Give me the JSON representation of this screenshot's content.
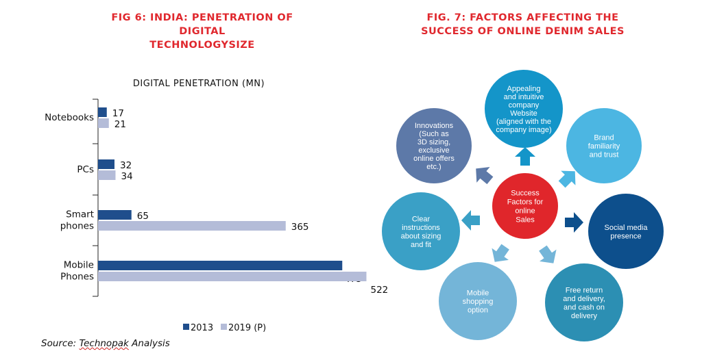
{
  "left_figure": {
    "title_line1": "FIG 6: INDIA: PENETRATION OF DIGITAL",
    "title_line2": "TECHNOLOGYSIZE"
  },
  "right_figure": {
    "title_line1": "FIG. 7: FACTORS AFFECTING THE",
    "title_line2": "SUCCESS OF ONLINE DENIM SALES"
  },
  "source": {
    "prefix": "Source: ",
    "name": "Technopak",
    "suffix": " Analysis"
  },
  "chart_data": {
    "type": "bar",
    "orientation": "horizontal",
    "title": "DIGITAL PENETRATION (MN)",
    "categories": [
      [
        "Notebooks"
      ],
      [
        "PCs"
      ],
      [
        "Smart",
        "phones"
      ],
      [
        "Mobile",
        "Phones"
      ]
    ],
    "series": [
      {
        "name": "2013",
        "values": [
          17,
          32,
          65,
          475
        ],
        "color": "#1f4e8c"
      },
      {
        "name": "2019 (P)",
        "values": [
          21,
          34,
          365,
          522
        ],
        "color": "#b4bcd8"
      }
    ],
    "legend_position": "bottom",
    "grid": false,
    "xlim": [
      0,
      600
    ]
  },
  "diagram": {
    "center": {
      "lines": [
        "Success",
        "Factors  for",
        "online",
        "Sales"
      ],
      "color": "#e0262b"
    },
    "factors": [
      {
        "lines": [
          "Appealing",
          "and intuitive",
          "company",
          "Website",
          "(aligned  with the",
          "company image)"
        ],
        "color": "#1495c9"
      },
      {
        "lines": [
          "Brand",
          "familiarity",
          "and trust"
        ],
        "color": "#4cb6e2"
      },
      {
        "lines": [
          "Social media",
          "presence"
        ],
        "color": "#0d4f8c"
      },
      {
        "lines": [
          "Free return",
          "and delivery,",
          "and cash on",
          "delivery"
        ],
        "color": "#2c8fb3"
      },
      {
        "lines": [
          "Mobile",
          "shopping",
          "option"
        ],
        "color": "#74b5d8"
      },
      {
        "lines": [
          "Clear",
          "instructions",
          "about sizing",
          "and fit"
        ],
        "color": "#3aa0c6"
      },
      {
        "lines": [
          "Innovations",
          "(Such as",
          "3D sizing,",
          "exclusive",
          "online offers",
          "etc.)"
        ],
        "color": "#5d79a8"
      }
    ]
  }
}
